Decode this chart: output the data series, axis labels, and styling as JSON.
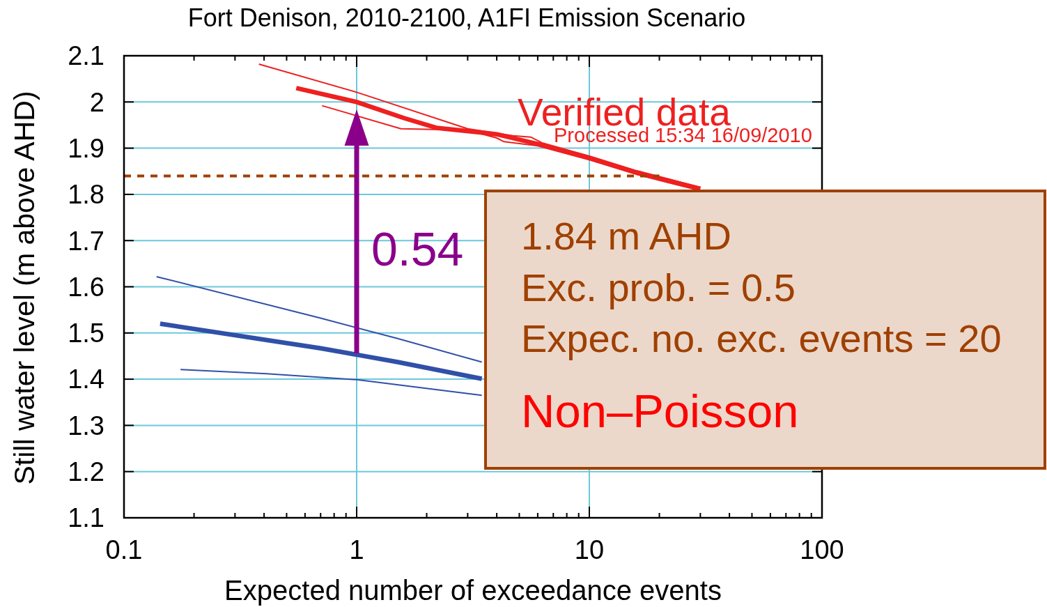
{
  "chart_data": {
    "type": "line",
    "title": "Fort Denison, 2010-2100, A1FI Emission Scenario",
    "xlabel": "Expected number of exceedance events",
    "ylabel": "Still water level (m above AHD)",
    "log": "x",
    "grid": true,
    "xlim": [
      0.1,
      100
    ],
    "ylim": [
      1.1,
      2.1
    ],
    "xticks": [
      0.1,
      {
        "value": 0.2,
        "label": null
      },
      {
        "value": 0.3,
        "label": null
      },
      {
        "value": 0.4,
        "label": null
      },
      {
        "value": 0.5,
        "label": null
      },
      {
        "value": 0.6,
        "label": null
      },
      {
        "value": 0.7,
        "label": null
      },
      {
        "value": 0.8,
        "label": null
      },
      {
        "value": 0.9,
        "label": null
      },
      1,
      {
        "value": 2,
        "label": null
      },
      {
        "value": 3,
        "label": null
      },
      {
        "value": 4,
        "label": null
      },
      {
        "value": 5,
        "label": null
      },
      {
        "value": 6,
        "label": null
      },
      {
        "value": 7,
        "label": null
      },
      {
        "value": 8,
        "label": null
      },
      {
        "value": 9,
        "label": null
      },
      10,
      {
        "value": 20,
        "label": null
      },
      {
        "value": 30,
        "label": null
      },
      {
        "value": 40,
        "label": null
      },
      {
        "value": 50,
        "label": null
      },
      {
        "value": 60,
        "label": null
      },
      {
        "value": 70,
        "label": null
      },
      {
        "value": 80,
        "label": null
      },
      {
        "value": 90,
        "label": null
      },
      100
    ],
    "yticks": [
      1.1,
      1.2,
      1.3,
      1.4,
      1.5,
      1.6,
      1.7,
      1.8,
      1.9,
      2,
      2.1
    ],
    "series": [
      {
        "color": "#ee2020",
        "x": [
          0.55,
          1,
          1.6,
          2.2,
          3.4,
          4,
          6,
          10,
          16,
          22,
          30
        ],
        "values": [
          2.03,
          2.0,
          1.965,
          1.944,
          1.934,
          1.93,
          1.909,
          1.879,
          1.847,
          1.829,
          1.812
        ]
      },
      {
        "color": "#ee2020",
        "x": [
          0.38,
          1,
          3,
          4.7,
          5.6,
          6.3,
          10,
          16,
          22,
          30
        ],
        "values": [
          2.082,
          2.021,
          1.942,
          1.927,
          1.924,
          1.911,
          1.883,
          1.851,
          1.833,
          1.815
        ]
      },
      {
        "color": "#ee2020",
        "x": [
          0.71,
          1.55,
          3,
          4,
          4.3,
          6,
          10,
          16,
          22,
          30
        ],
        "values": [
          1.992,
          1.942,
          1.939,
          1.922,
          1.914,
          1.905,
          1.875,
          1.843,
          1.825,
          1.808
        ]
      },
      {
        "color": "#3050a8",
        "x": [
          0.143,
          0.7,
          1.5,
          3.45
        ],
        "values": [
          1.52,
          1.467,
          1.437,
          1.401
        ]
      },
      {
        "color": "#3050a8",
        "x": [
          0.138,
          0.7,
          1.5,
          3.45
        ],
        "values": [
          1.622,
          1.532,
          1.488,
          1.437
        ]
      },
      {
        "color": "#3050a8",
        "x": [
          0.175,
          0.41,
          1,
          3.45
        ],
        "values": [
          1.421,
          1.412,
          1.399,
          1.365
        ]
      },
      {
        "color": "#a04000",
        "line_style": "dashed",
        "x": [
          0.1,
          20
        ],
        "values": [
          1.84,
          1.84
        ]
      }
    ],
    "annotations": [
      "Verified data",
      "Processed 15:34 16/09/2010",
      "0.54",
      "1.84 m AHD",
      "Exc. prob. = 0.5",
      "Expec. no. exc. events = 20",
      "Non–Poisson"
    ]
  }
}
